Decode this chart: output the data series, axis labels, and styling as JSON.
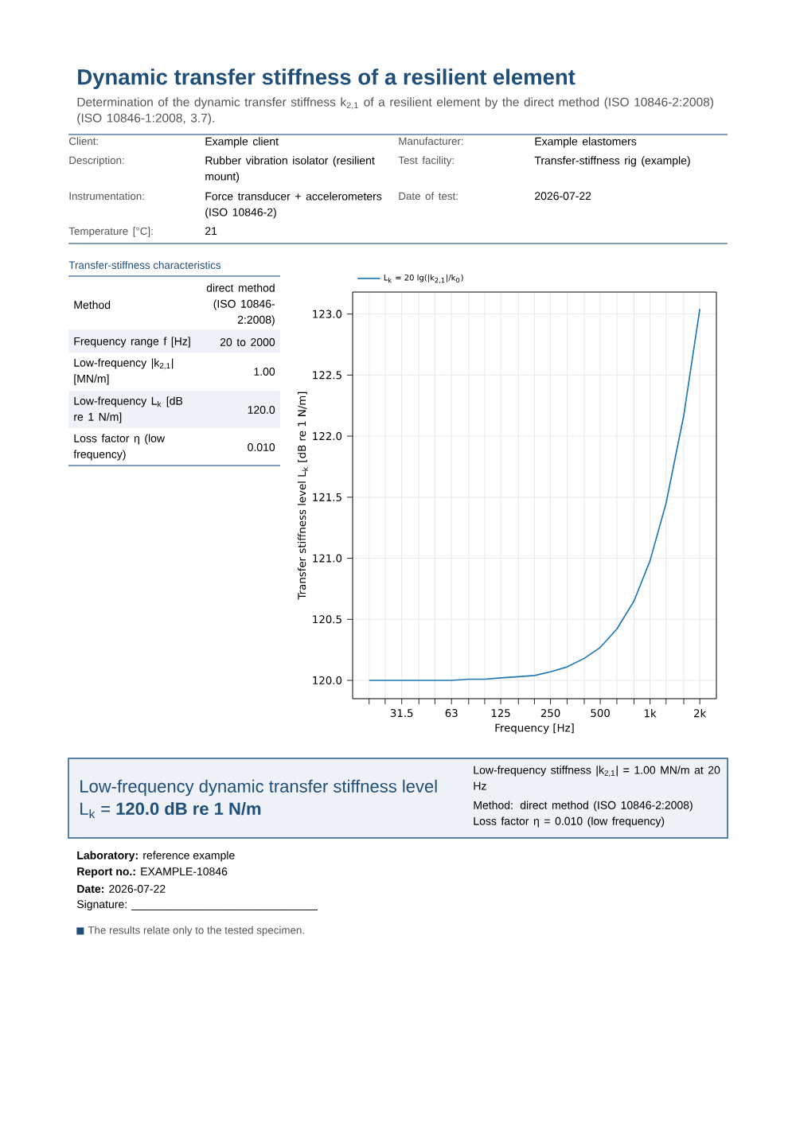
{
  "chart_data": {
    "type": "line",
    "title": "Dynamic transfer stiffness of a resilient element",
    "subtitle": "Determination of the dynamic transfer stiffness k$_{2,1}$ of a resilient element by the direct method (ISO 10846-2:2008) (ISO 10846-1:2008, 3.7).",
    "xlabel": "Frequency [Hz]",
    "ylabel": "Transfer stiffness level L$_{k}$ [dB re 1 N/m]",
    "log": "x",
    "x": [
      20,
      25,
      31.5,
      40,
      50,
      63,
      80,
      100,
      125,
      160,
      200,
      250,
      315,
      400,
      500,
      630,
      800,
      1000,
      1250,
      1600,
      2000
    ],
    "series": [
      {
        "name": "L$_{k}$ = 20 lg(|k$_{2,1}$|/k$_{0}$)",
        "color": "#1f77b4",
        "values": [
          120.0,
          120.0,
          120.0,
          120.0,
          120.0,
          120.0,
          120.01,
          120.01,
          120.02,
          120.03,
          120.04,
          120.07,
          120.11,
          120.18,
          120.27,
          120.42,
          120.65,
          120.98,
          121.45,
          122.17,
          123.04
        ]
      }
    ],
    "xlim": [
      15.9,
      2520
    ],
    "ylim": [
      119.85,
      123.18
    ],
    "xticks": [
      {
        "value": 20,
        "label": null
      },
      {
        "value": 25,
        "label": null
      },
      31.5,
      {
        "value": 40,
        "label": null
      },
      {
        "value": 50,
        "label": null
      },
      63,
      {
        "value": 80,
        "label": null
      },
      {
        "value": 100,
        "label": null
      },
      125,
      {
        "value": 160,
        "label": null
      },
      {
        "value": 200,
        "label": null
      },
      250,
      {
        "value": 315,
        "label": null
      },
      {
        "value": 400,
        "label": null
      },
      500,
      {
        "value": 630,
        "label": null
      },
      {
        "value": 800,
        "label": null
      },
      {
        "value": 1000,
        "label": "1k"
      },
      {
        "value": 1250,
        "label": null
      },
      {
        "value": 1600,
        "label": null
      },
      {
        "value": 2000,
        "label": "2k"
      }
    ],
    "yticks": [
      {
        "value": 120,
        "label": "120.0"
      },
      120.5,
      {
        "value": 121,
        "label": "121.0"
      },
      121.5,
      {
        "value": 122,
        "label": "122.0"
      },
      122.5,
      {
        "value": 123,
        "label": "123.0"
      }
    ],
    "grid": true,
    "legend": "top left",
    "annotations": [
      "Client:",
      "Example client",
      "Manufacturer:",
      "Example elastomers",
      "Description:",
      "Rubber vibration isolator (resilient mount)",
      "Test facility:",
      "Transfer-stiffness rig (example)",
      "Instrumentation:",
      "Force transducer + accelerometers (ISO 10846-2)",
      "Date of test:",
      "2026-07-22",
      "Temperature [°C]:",
      "21",
      "Transfer-stiffness characteristics",
      "Method",
      "direct method (ISO 10846-2:2008)",
      "Frequency range f [Hz]",
      "20 to 2000",
      "Low-frequency |k$_{2,1}$| [MN/m]",
      "1.00",
      "Low-frequency L$_{k}$ [dB re 1 N/m]",
      "120.0",
      "Loss factor η (low frequency)",
      "0.010",
      "Low-frequency dynamic transfer stiffness level",
      "L$_{k}$ = **120.0 dB re 1 N/m**",
      "Low-frequency stiffness |k$_{2,1}$| = 1.00 MN/m at 20 Hz",
      "Method: direct method (ISO 10846-2:2008)",
      "Loss factor η = 0.010 (low frequency)",
      "**Laboratory:** reference example",
      "**Report no.:** EXAMPLE-10846",
      "**Date:** 2026-07-22",
      "Signature: ______________________________",
      "The results relate only to the tested specimen."
    ]
  }
}
